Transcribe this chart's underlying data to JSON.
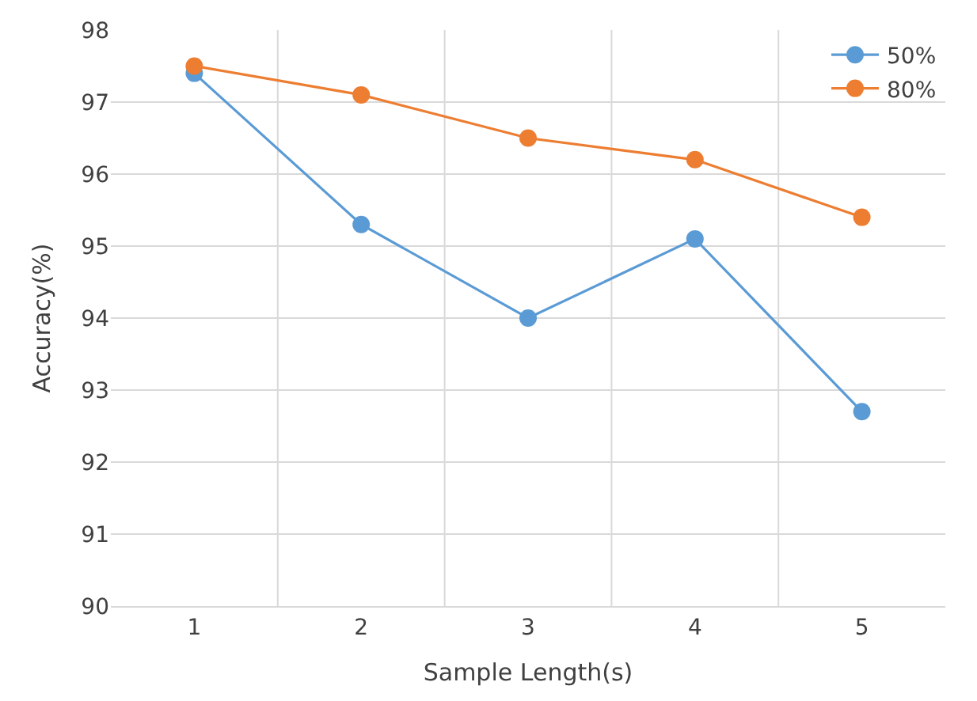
{
  "chart_data": {
    "type": "line",
    "xlabel": "Sample Length(s)",
    "ylabel": "Accuracy(%)",
    "categories": [
      "1",
      "2",
      "3",
      "4",
      "5"
    ],
    "series": [
      {
        "name": "50%",
        "color": "#5b9bd5",
        "values": [
          97.4,
          95.3,
          94.0,
          95.1,
          92.7
        ]
      },
      {
        "name": "80%",
        "color": "#ed7d31",
        "values": [
          97.5,
          97.1,
          96.5,
          96.2,
          95.4
        ]
      }
    ],
    "ylim": [
      90,
      98
    ],
    "yticks": [
      90,
      91,
      92,
      93,
      94,
      95,
      96,
      97,
      98
    ],
    "grid": true,
    "legend": "top right",
    "marker": "circle",
    "line_style": "solid"
  }
}
